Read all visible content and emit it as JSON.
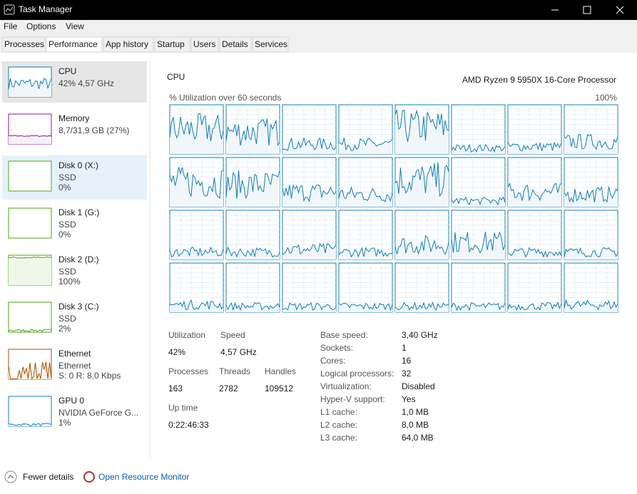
{
  "window": {
    "title": "Task Manager"
  },
  "menu": [
    "File",
    "Options",
    "View"
  ],
  "tabs": [
    "Processes",
    "Performance",
    "App history",
    "Startup",
    "Users",
    "Details",
    "Services"
  ],
  "sidebar": [
    {
      "name": "CPU",
      "detail": "42% 4,57 GHz"
    },
    {
      "name": "Memory",
      "detail": "8,7/31,9 GB (27%)"
    },
    {
      "name": "Disk 0 (X:)",
      "kind": "SSD",
      "detail": "0%"
    },
    {
      "name": "Disk 1 (G:)",
      "kind": "SSD",
      "detail": "0%"
    },
    {
      "name": "Disk 2 (D:)",
      "kind": "SSD",
      "detail": "100%"
    },
    {
      "name": "Disk 3 (C:)",
      "kind": "SSD",
      "detail": "2%"
    },
    {
      "name": "Ethernet",
      "kind": "Ethernet",
      "detail": "S: 0 R: 8,0 Kbps"
    },
    {
      "name": "GPU 0",
      "kind": "NVIDIA GeForce G...",
      "detail": "1%"
    }
  ],
  "cpu": {
    "title": "CPU",
    "processor": "AMD Ryzen 9 5950X 16-Core Processor",
    "graph_label": "% Utilization over 60 seconds",
    "graph_max": "100%",
    "stats": [
      {
        "label": "Utilization",
        "value": "42%"
      },
      {
        "label": "Speed",
        "value": "4,57 GHz"
      },
      {
        "label": "Processes",
        "value": "163"
      },
      {
        "label": "Threads",
        "value": "2782"
      },
      {
        "label": "Handles",
        "value": "109512"
      },
      {
        "label": "Up time",
        "value": "0:22:46:33"
      }
    ],
    "specs": [
      {
        "label": "Base speed:",
        "value": "3,40 GHz"
      },
      {
        "label": "Sockets:",
        "value": "1"
      },
      {
        "label": "Cores:",
        "value": "16"
      },
      {
        "label": "Logical processors:",
        "value": "32"
      },
      {
        "label": "Virtualization:",
        "value": "Disabled"
      },
      {
        "label": "Hyper-V support:",
        "value": "Yes"
      },
      {
        "label": "L1 cache:",
        "value": "1,0 MB"
      },
      {
        "label": "L2 cache:",
        "value": "8,0 MB"
      },
      {
        "label": "L3 cache:",
        "value": "64,0 MB"
      }
    ]
  },
  "footer": {
    "fewer": "Fewer details",
    "monitor": "Open Resource Monitor"
  }
}
